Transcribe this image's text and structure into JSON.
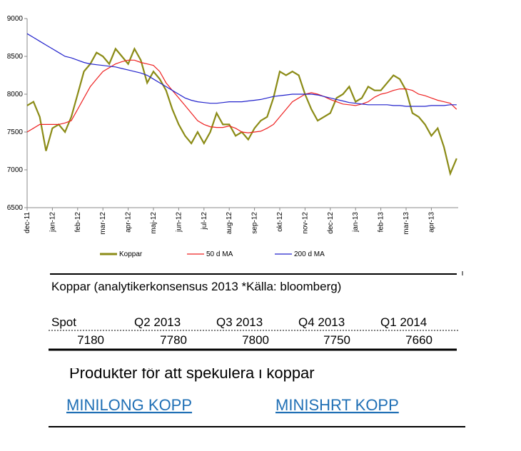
{
  "chart_data": {
    "type": "line",
    "categories": [
      "dec-11",
      null,
      null,
      null,
      "jan-12",
      null,
      null,
      null,
      "feb-12",
      null,
      null,
      null,
      "mar-12",
      null,
      null,
      null,
      "apr-12",
      null,
      null,
      null,
      "maj-12",
      null,
      null,
      null,
      "jun-12",
      null,
      null,
      null,
      "jul-12",
      null,
      null,
      null,
      "aug-12",
      null,
      null,
      null,
      "sep-12",
      null,
      null,
      null,
      "okt-12",
      null,
      null,
      null,
      "nov-12",
      null,
      null,
      null,
      "dec-12",
      null,
      null,
      null,
      "jan-13",
      null,
      null,
      null,
      "feb-13",
      null,
      null,
      null,
      "mar-13",
      null,
      null,
      null,
      "apr-13",
      null,
      null,
      null,
      null
    ],
    "series": [
      {
        "name": "Koppar",
        "color": "#8b8b16",
        "values": [
          7850,
          7900,
          7700,
          7250,
          7550,
          7600,
          7500,
          7700,
          8000,
          8300,
          8400,
          8550,
          8500,
          8400,
          8600,
          8500,
          8400,
          8600,
          8450,
          8150,
          8300,
          8200,
          8050,
          7800,
          7600,
          7450,
          7350,
          7500,
          7350,
          7500,
          7750,
          7600,
          7600,
          7450,
          7500,
          7400,
          7550,
          7650,
          7700,
          7950,
          8300,
          8250,
          8300,
          8250,
          8000,
          7800,
          7650,
          7700,
          7750,
          7950,
          8000,
          8100,
          7900,
          7950,
          8100,
          8050,
          8050,
          8150,
          8250,
          8200,
          8050,
          7750,
          7700,
          7600,
          7450,
          7550,
          7300,
          6950,
          7150
        ]
      },
      {
        "name": "50 d MA",
        "color": "#ee2222",
        "values": [
          7500,
          7550,
          7600,
          7600,
          7600,
          7600,
          7620,
          7650,
          7800,
          7950,
          8100,
          8200,
          8300,
          8350,
          8400,
          8430,
          8450,
          8450,
          8420,
          8400,
          8380,
          8300,
          8150,
          8050,
          7950,
          7850,
          7750,
          7650,
          7600,
          7570,
          7560,
          7560,
          7580,
          7550,
          7500,
          7490,
          7500,
          7510,
          7550,
          7600,
          7700,
          7800,
          7900,
          7950,
          8000,
          8020,
          8000,
          7970,
          7930,
          7900,
          7870,
          7860,
          7850,
          7870,
          7900,
          7960,
          8000,
          8020,
          8050,
          8070,
          8070,
          8050,
          8000,
          7980,
          7950,
          7920,
          7900,
          7880,
          7800
        ]
      },
      {
        "name": "200 d MA",
        "color": "#2222cc",
        "values": [
          8800,
          8750,
          8700,
          8650,
          8600,
          8550,
          8500,
          8480,
          8450,
          8420,
          8400,
          8390,
          8380,
          8370,
          8360,
          8340,
          8320,
          8300,
          8280,
          8250,
          8200,
          8150,
          8100,
          8050,
          8000,
          7950,
          7920,
          7900,
          7890,
          7880,
          7880,
          7890,
          7900,
          7900,
          7900,
          7910,
          7920,
          7930,
          7950,
          7970,
          7980,
          7990,
          8000,
          8000,
          8000,
          8000,
          7990,
          7970,
          7950,
          7930,
          7910,
          7890,
          7880,
          7870,
          7860,
          7860,
          7860,
          7860,
          7850,
          7850,
          7840,
          7840,
          7840,
          7840,
          7850,
          7850,
          7850,
          7860,
          7860
        ]
      }
    ],
    "ylim": [
      6500,
      9000
    ],
    "yticks": [
      6500,
      7000,
      7500,
      8000,
      8500,
      9000
    ]
  },
  "table": {
    "title": "Koppar (analytikerkonsensus 2013 *Källa: bloomberg)",
    "header": [
      "Spot",
      "Q2 2013",
      "Q3 2013",
      "Q4 2013",
      "Q1 2014"
    ],
    "rows": [
      [
        "7180",
        "7780",
        "7800",
        "7750",
        "7660"
      ]
    ]
  },
  "products": {
    "heading": "Produkter för att spekulera i koppar",
    "links": [
      "MINILONG KOPP",
      "MINISHRT KOPP"
    ]
  }
}
